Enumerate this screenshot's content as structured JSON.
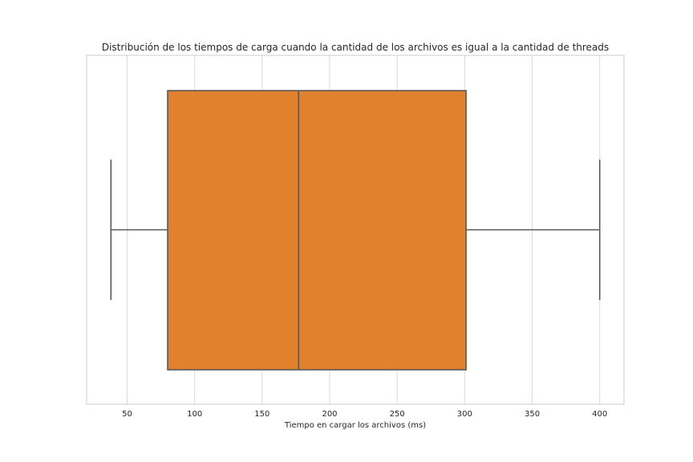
{
  "chart_data": {
    "type": "box",
    "title": "Distribución de los tiempos de carga cuando la cantidad de los archivos es igual a la cantidad de threads",
    "xlabel": "Tiempo en cargar los archivos (ms)",
    "ylabel": "",
    "xlim": [
      20,
      418
    ],
    "xticks": [
      50,
      100,
      150,
      200,
      250,
      300,
      350,
      400
    ],
    "orientation": "horizontal",
    "grid": true,
    "box": {
      "whisker_low": 38,
      "q1": 80,
      "median": 177,
      "q3": 301,
      "whisker_high": 400
    },
    "colors": {
      "box_fill": "#e1812c",
      "line": "#595959",
      "grid": "#d9d9d9",
      "frame": "#cccccc"
    }
  }
}
